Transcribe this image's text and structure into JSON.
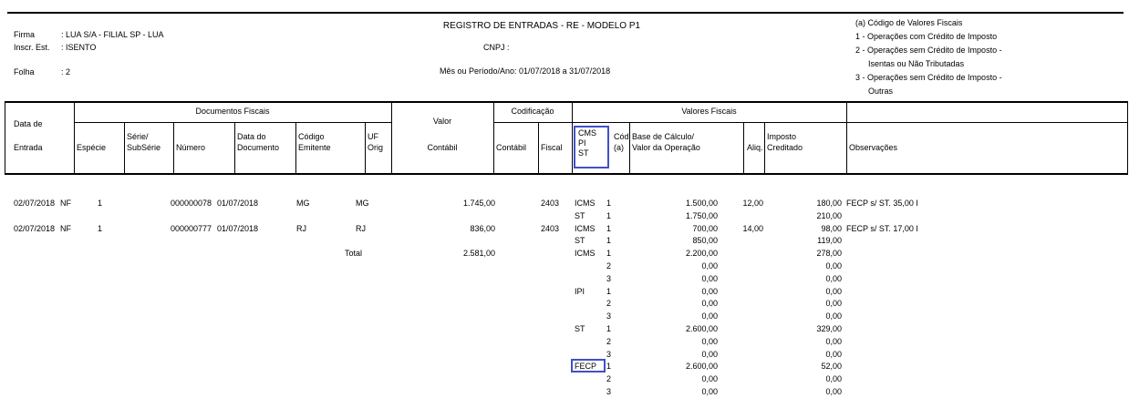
{
  "page": {
    "title": "REGISTRO DE ENTRADAS - RE - MODELO P1",
    "cnpj_label": "CNPJ :",
    "periodo": "Mês ou Período/Ano: 01/07/2018 a 31/07/2018",
    "firma_label": "Firma",
    "firma_value": ": LUA S/A - FILIAL SP - LUA",
    "inscr_label": "Inscr. Est.",
    "inscr_value": ": ISENTO",
    "folha_label": "Folha",
    "folha_value": ": 2",
    "legend": [
      "(a) Código de Valores Fiscais",
      "1 - Operações com Crédito de Imposto",
      "2 - Operações sem Crédito de Imposto -",
      "Isentas ou Não Tributadas",
      "3 - Operações sem Crédito de Imposto -",
      "Outras"
    ]
  },
  "annotations": {
    "highlight_color": "#4150c8"
  },
  "table": {
    "groups": {
      "documentos_fiscais": "Documentos Fiscais",
      "codificacao": "Codificação",
      "valores_fiscais": "Valores Fiscais"
    },
    "headers": {
      "data_de": "Data de",
      "entrada": "Entrada",
      "especie": "Espécie",
      "serie": "Série/",
      "subserie": "SubSérie",
      "numero": "Número",
      "data_do": "Data do",
      "documento": "Documento",
      "codigo": "Código",
      "emitente": "Emitente",
      "uf": "UF",
      "orig": "Orig",
      "valor": "Valor",
      "contabil": "Contábil",
      "cod_contabil": "Contábil",
      "cod_fiscal": "Fiscal",
      "icms_line1": "CMS",
      "icms_line2": "PI",
      "icms_line3": "ST",
      "cod": "Cód",
      "cod_a": "(a)",
      "base1": "Base de Cálculo/",
      "base2": "Valor da Operação",
      "aliq": "Aliq.",
      "imposto": "Imposto",
      "creditado": "Creditado",
      "observacoes": "Observações"
    },
    "rows": [
      {
        "data_entrada": "02/07/2018",
        "especie": "NF",
        "serie": "1",
        "numero": "000000078",
        "data_documento": "01/07/2018",
        "codigo_emitente": "MG",
        "uf_orig": "MG",
        "valor_contabil": "1.745,00",
        "cod_fiscal": "2403",
        "imposto_tipo": "ICMS",
        "cod_a": "1",
        "base_calculo": "1.500,00",
        "aliq": "12,00",
        "imposto_creditado": "180,00",
        "observacoes": "FECP s/ ST. 35,00 I"
      },
      {
        "imposto_tipo": "ST",
        "cod_a": "1",
        "base_calculo": "1.750,00",
        "imposto_creditado": "210,00"
      },
      {
        "data_entrada": "02/07/2018",
        "especie": "NF",
        "serie": "1",
        "numero": "000000777",
        "data_documento": "01/07/2018",
        "codigo_emitente": "RJ",
        "uf_orig": "RJ",
        "valor_contabil": "836,00",
        "cod_fiscal": "2403",
        "imposto_tipo": "ICMS",
        "cod_a": "1",
        "base_calculo": "700,00",
        "aliq": "14,00",
        "imposto_creditado": "98,00",
        "observacoes": "FECP s/ ST. 17,00 I"
      },
      {
        "imposto_tipo": "ST",
        "cod_a": "1",
        "base_calculo": "850,00",
        "imposto_creditado": "119,00"
      },
      {
        "total_label": "Total",
        "valor_contabil": "2.581,00",
        "imposto_tipo": "ICMS",
        "cod_a": "1",
        "base_calculo": "2.200,00",
        "imposto_creditado": "278,00"
      },
      {
        "cod_a": "2",
        "base_calculo": "0,00",
        "imposto_creditado": "0,00"
      },
      {
        "cod_a": "3",
        "base_calculo": "0,00",
        "imposto_creditado": "0,00"
      },
      {
        "imposto_tipo": "IPI",
        "cod_a": "1",
        "base_calculo": "0,00",
        "imposto_creditado": "0,00"
      },
      {
        "cod_a": "2",
        "base_calculo": "0,00",
        "imposto_creditado": "0,00"
      },
      {
        "cod_a": "3",
        "base_calculo": "0,00",
        "imposto_creditado": "0,00"
      },
      {
        "imposto_tipo": "ST",
        "cod_a": "1",
        "base_calculo": "2.600,00",
        "imposto_creditado": "329,00"
      },
      {
        "cod_a": "2",
        "base_calculo": "0,00",
        "imposto_creditado": "0,00"
      },
      {
        "cod_a": "3",
        "base_calculo": "0,00",
        "imposto_creditado": "0,00"
      },
      {
        "imposto_tipo": "FECP",
        "cod_a": "1",
        "base_calculo": "2.600,00",
        "imposto_creditado": "52,00",
        "highlight": true
      },
      {
        "cod_a": "2",
        "base_calculo": "0,00",
        "imposto_creditado": "0,00"
      },
      {
        "cod_a": "3",
        "base_calculo": "0,00",
        "imposto_creditado": "0,00"
      }
    ]
  }
}
